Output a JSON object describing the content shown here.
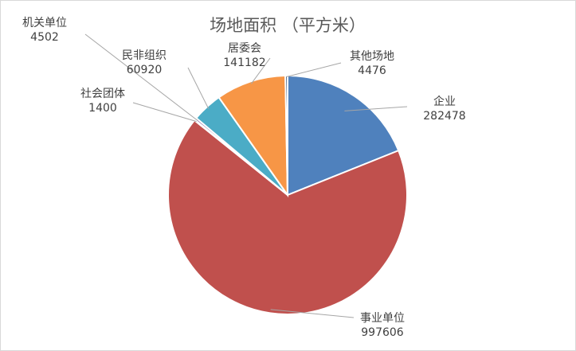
{
  "chart_data": {
    "type": "pie",
    "title": "场地面积 （平方米）",
    "slices": [
      {
        "name": "企业",
        "value": 282478,
        "value_label": "282478",
        "color": "#4f81bd"
      },
      {
        "name": "事业单位",
        "value": 997606,
        "value_label": "997606",
        "color": "#c0504d"
      },
      {
        "name": "社会团体",
        "value": 1400,
        "value_label": "1400",
        "color": "#9bbb59"
      },
      {
        "name": "机关单位",
        "value": 4502,
        "value_label": "4502",
        "color": "#8064a2"
      },
      {
        "name": "民非组织",
        "value": 60920,
        "value_label": "60920",
        "color": "#4bacc6"
      },
      {
        "name": "居委会",
        "value": 141182,
        "value_label": "141182",
        "color": "#f79646"
      },
      {
        "name": "其他场地",
        "value": 4476,
        "value_label": "4476",
        "color": "#2c4d75"
      }
    ],
    "start_angle_deg": 0,
    "direction": "clockwise"
  }
}
